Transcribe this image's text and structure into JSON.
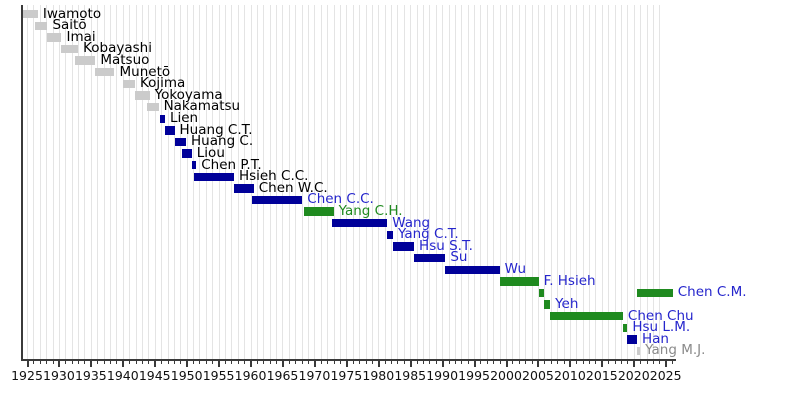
{
  "chart_data": {
    "type": "bar",
    "variant": "horizontal-timeline-gantt",
    "description_visible_text_only": true,
    "x_axis": {
      "start": 1924.1,
      "end": 2026.5,
      "tick_values": [
        1925,
        1930,
        1935,
        1940,
        1945,
        1950,
        1955,
        1960,
        1965,
        1970,
        1975,
        1980,
        1985,
        1990,
        1995,
        2000,
        2005,
        2010,
        2015,
        2020,
        2025
      ],
      "tick_labels": [
        "1925",
        "1930",
        "1935",
        "1940",
        "1945",
        "1950",
        "1955",
        "1960",
        "1965",
        "1970",
        "1975",
        "1980",
        "1985",
        "1990",
        "1995",
        "2000",
        "2005",
        "2010",
        "2015",
        "2020",
        "2025"
      ],
      "minor_tick_interval_years": 1,
      "gridlines": "yearly"
    },
    "rows": [
      {
        "label": "Iwamoto",
        "text": "black",
        "bars": [
          {
            "start": 1924.4,
            "end": 1926.7,
            "color": "gray"
          }
        ]
      },
      {
        "label": "Saitō",
        "text": "black",
        "bars": [
          {
            "start": 1926.2,
            "end": 1928.2,
            "color": "gray"
          }
        ]
      },
      {
        "label": "Imai",
        "text": "black",
        "bars": [
          {
            "start": 1928.2,
            "end": 1930.4,
            "color": "gray"
          }
        ]
      },
      {
        "label": "Kobayashi",
        "text": "black",
        "bars": [
          {
            "start": 1930.3,
            "end": 1933.0,
            "color": "gray"
          }
        ]
      },
      {
        "label": "Matsuo",
        "text": "black",
        "bars": [
          {
            "start": 1932.5,
            "end": 1935.7,
            "color": "gray"
          }
        ]
      },
      {
        "label": "Munetō",
        "text": "black",
        "bars": [
          {
            "start": 1935.7,
            "end": 1938.7,
            "color": "gray"
          }
        ]
      },
      {
        "label": "Kojima",
        "text": "black",
        "bars": [
          {
            "start": 1940.0,
            "end": 1941.9,
            "color": "gray"
          }
        ]
      },
      {
        "label": "Yokoyama",
        "text": "black",
        "bars": [
          {
            "start": 1941.9,
            "end": 1944.2,
            "color": "gray"
          }
        ]
      },
      {
        "label": "Nakamatsu",
        "text": "black",
        "bars": [
          {
            "start": 1943.8,
            "end": 1945.6,
            "color": "gray"
          }
        ]
      },
      {
        "label": "Lien",
        "text": "black",
        "bars": [
          {
            "start": 1945.8,
            "end": 1946.6,
            "color": "navy"
          }
        ]
      },
      {
        "label": "Huang C.T.",
        "text": "black",
        "bars": [
          {
            "start": 1946.6,
            "end": 1948.1,
            "color": "navy"
          }
        ]
      },
      {
        "label": "Huang C.",
        "text": "black",
        "bars": [
          {
            "start": 1948.1,
            "end": 1949.9,
            "color": "navy"
          }
        ]
      },
      {
        "label": "Liou",
        "text": "black",
        "bars": [
          {
            "start": 1949.3,
            "end": 1950.8,
            "color": "navy"
          }
        ]
      },
      {
        "label": "Chen P.T.",
        "text": "black",
        "bars": [
          {
            "start": 1950.8,
            "end": 1951.5,
            "color": "navy"
          }
        ]
      },
      {
        "label": "Hsieh C.C.",
        "text": "black",
        "bars": [
          {
            "start": 1951.2,
            "end": 1957.4,
            "color": "navy"
          }
        ]
      },
      {
        "label": "Chen W.C.",
        "text": "black",
        "bars": [
          {
            "start": 1957.4,
            "end": 1960.5,
            "color": "navy"
          }
        ]
      },
      {
        "label": "Chen C.C.",
        "text": "blue",
        "bars": [
          {
            "start": 1960.3,
            "end": 1968.1,
            "color": "navy"
          }
        ]
      },
      {
        "label": "Yang C.H.",
        "text": "green",
        "bars": [
          {
            "start": 1968.3,
            "end": 1973.0,
            "color": "green"
          }
        ]
      },
      {
        "label": "Wang",
        "text": "blue",
        "bars": [
          {
            "start": 1972.8,
            "end": 1981.4,
            "color": "navy"
          }
        ]
      },
      {
        "label": "Yang C.T.",
        "text": "blue",
        "bars": [
          {
            "start": 1981.4,
            "end": 1982.3,
            "color": "navy"
          }
        ]
      },
      {
        "label": "Hsu S.T.",
        "text": "blue",
        "bars": [
          {
            "start": 1982.3,
            "end": 1985.6,
            "color": "navy"
          }
        ]
      },
      {
        "label": "Su",
        "text": "blue",
        "bars": [
          {
            "start": 1985.6,
            "end": 1990.5,
            "color": "navy"
          }
        ]
      },
      {
        "label": "Wu",
        "text": "blue",
        "bars": [
          {
            "start": 1990.5,
            "end": 1999.0,
            "color": "navy"
          }
        ]
      },
      {
        "label": "F. Hsieh",
        "text": "blue",
        "bars": [
          {
            "start": 1999.0,
            "end": 2005.1,
            "color": "green"
          }
        ]
      },
      {
        "label": "Chen C.M.",
        "text": "blue",
        "bars": [
          {
            "start": 2005.2,
            "end": 2005.9,
            "color": "green"
          },
          {
            "start": 2020.5,
            "end": 2026.1,
            "color": "green"
          }
        ]
      },
      {
        "label": "Yeh",
        "text": "blue",
        "bars": [
          {
            "start": 2005.9,
            "end": 2006.9,
            "color": "green"
          }
        ]
      },
      {
        "label": "Chen Chu",
        "text": "blue",
        "bars": [
          {
            "start": 2006.9,
            "end": 2018.3,
            "color": "green"
          }
        ]
      },
      {
        "label": "Hsu L.M.",
        "text": "blue",
        "bars": [
          {
            "start": 2018.3,
            "end": 2019.0,
            "color": "green"
          }
        ]
      },
      {
        "label": "Han",
        "text": "blue",
        "bars": [
          {
            "start": 2019.0,
            "end": 2020.5,
            "color": "navy"
          }
        ]
      },
      {
        "label": "Yang M.J.",
        "text": "gray",
        "bars": [
          {
            "start": 2020.5,
            "end": 2021.0,
            "color": "gray"
          }
        ]
      }
    ]
  },
  "colors": {
    "bar_gray": "#cbcbcb",
    "bar_navy": "#000099",
    "bar_green": "#1f8a1f",
    "text_black": "#000000",
    "text_blue": "#2525cc",
    "text_green": "#1f8a1f",
    "text_gray": "#8a8a8a",
    "gridline": "#e4e4e4",
    "axis": "#3a3a3a",
    "tick_label": "#111111",
    "background": "#ffffff"
  }
}
